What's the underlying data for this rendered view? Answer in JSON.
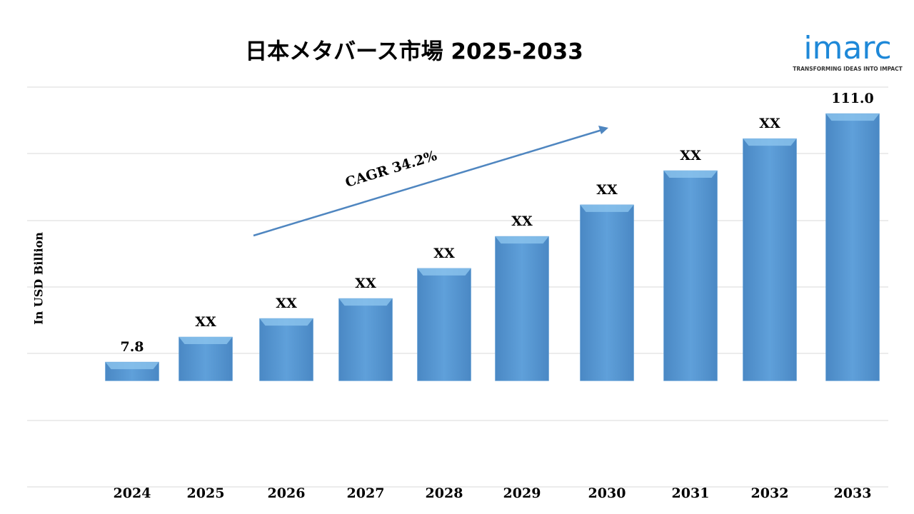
{
  "chart_data": {
    "type": "bar",
    "title": "日本メタバース市場 2025-2033",
    "y_label": "In USD Billion",
    "annotation": "CAGR 34.2%",
    "logo": "imarc",
    "logo_tagline": "TRANSFORMING IDEAS INTO IMPACT",
    "categories": [
      "2024",
      "2025",
      "2026",
      "2027",
      "2028",
      "2029",
      "2030",
      "2031",
      "2032",
      "2033"
    ],
    "values": [
      7.8,
      18.2,
      25.9,
      34.2,
      46.7,
      60.0,
      73.1,
      87.3,
      100.6,
      111.0
    ],
    "value_labels": [
      "7.8",
      "XX",
      "XX",
      "XX",
      "XX",
      "XX",
      "XX",
      "XX",
      "XX",
      "111.0"
    ],
    "color": "#5b9bd5",
    "ylim": [
      -40.5,
      122
    ]
  }
}
